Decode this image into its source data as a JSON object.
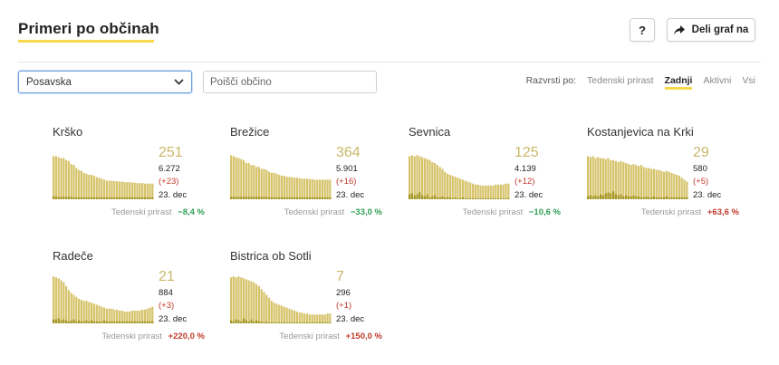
{
  "header": {
    "title": "Primeri po občinah",
    "help_label": "?",
    "share_label": "Deli graf na",
    "share_icon": "share-arrow-icon"
  },
  "filters": {
    "region_value": "Posavska",
    "search_placeholder": "Poišči občino"
  },
  "sort": {
    "label": "Razvrsti po:",
    "options": [
      "Tedenski prirast",
      "Zadnji",
      "Aktivni",
      "Vsi"
    ],
    "active": "Zadnji"
  },
  "colors": {
    "bar": "#d6c36a",
    "bar_dark": "#a39520",
    "accent_yellow": "#f6d84a",
    "negative_growth": "#2e9e55",
    "positive_growth": "#c0392b"
  },
  "cards": [
    {
      "name": "Krško",
      "active": "251",
      "total": "6.272",
      "delta": "(+23)",
      "date": "23. dec",
      "growth_label": "Tedenski prirast",
      "growth": "−8,4 %",
      "growth_dir": "neg",
      "bars": [
        88,
        88,
        86,
        84,
        84,
        80,
        78,
        72,
        70,
        64,
        60,
        58,
        54,
        52,
        50,
        50,
        48,
        45,
        44,
        42,
        40,
        38,
        38,
        38,
        37,
        37,
        36,
        36,
        35,
        35,
        35,
        34,
        34,
        33,
        33,
        33,
        32,
        32,
        32,
        32
      ],
      "dark": [
        6,
        6,
        5,
        5,
        5,
        5,
        5,
        5,
        4,
        4,
        4,
        4,
        4,
        4,
        4,
        4,
        4,
        4,
        4,
        4,
        4,
        4,
        4,
        4,
        4,
        4,
        4,
        4,
        4,
        4,
        4,
        4,
        4,
        4,
        4,
        4,
        4,
        4,
        4,
        4
      ]
    },
    {
      "name": "Brežice",
      "active": "364",
      "total": "5.901",
      "delta": "(+16)",
      "date": "23. dec",
      "growth_label": "Tedenski prirast",
      "growth": "−33,0 %",
      "growth_dir": "neg",
      "bars": [
        90,
        88,
        86,
        84,
        82,
        80,
        74,
        74,
        70,
        70,
        66,
        66,
        62,
        62,
        60,
        56,
        54,
        54,
        52,
        50,
        48,
        48,
        46,
        46,
        45,
        44,
        44,
        43,
        42,
        42,
        42,
        41,
        41,
        40,
        40,
        40,
        40,
        40,
        40,
        40
      ],
      "dark": [
        5,
        5,
        5,
        5,
        5,
        5,
        5,
        5,
        5,
        5,
        5,
        5,
        5,
        5,
        5,
        4,
        4,
        4,
        4,
        4,
        4,
        4,
        4,
        4,
        4,
        4,
        4,
        4,
        4,
        4,
        4,
        4,
        4,
        4,
        4,
        4,
        4,
        4,
        4,
        4
      ]
    },
    {
      "name": "Sevnica",
      "active": "125",
      "total": "4.139",
      "delta": "(+12)",
      "date": "23. dec",
      "growth_label": "Tedenski prirast",
      "growth": "−10,6 %",
      "growth_dir": "neg",
      "bars": [
        88,
        90,
        88,
        90,
        88,
        86,
        84,
        82,
        80,
        76,
        74,
        70,
        66,
        62,
        56,
        52,
        50,
        48,
        46,
        44,
        42,
        40,
        38,
        36,
        34,
        32,
        30,
        30,
        28,
        28,
        28,
        28,
        28,
        28,
        30,
        30,
        30,
        30,
        32,
        32
      ],
      "dark": [
        10,
        12,
        8,
        10,
        14,
        8,
        6,
        10,
        4,
        6,
        8,
        4,
        4,
        6,
        4,
        4,
        4,
        2,
        4,
        2,
        2,
        4,
        2,
        2,
        2,
        2,
        2,
        2,
        2,
        2,
        2,
        2,
        2,
        2,
        2,
        2,
        2,
        2,
        2,
        2
      ]
    },
    {
      "name": "Kostanjevica na Krki",
      "active": "29",
      "total": "580",
      "delta": "(+5)",
      "date": "23. dec",
      "growth_label": "Tedenski prirast",
      "growth": "+63,6 %",
      "growth_dir": "pos",
      "bars": [
        88,
        86,
        88,
        84,
        86,
        84,
        84,
        82,
        84,
        80,
        80,
        78,
        76,
        78,
        76,
        74,
        72,
        70,
        72,
        70,
        68,
        70,
        66,
        64,
        64,
        62,
        62,
        60,
        60,
        58,
        56,
        58,
        56,
        54,
        52,
        50,
        48,
        44,
        40,
        36
      ],
      "dark": [
        6,
        8,
        6,
        8,
        6,
        10,
        8,
        12,
        14,
        12,
        16,
        10,
        8,
        10,
        6,
        8,
        6,
        6,
        8,
        6,
        6,
        4,
        4,
        6,
        4,
        4,
        6,
        4,
        4,
        4,
        4,
        6,
        4,
        4,
        4,
        4,
        4,
        4,
        4,
        4
      ]
    },
    {
      "name": "Radeče",
      "active": "21",
      "total": "884",
      "delta": "(+3)",
      "date": "23. dec",
      "growth_label": "Tedenski prirast",
      "growth": "+220,0 %",
      "growth_dir": "pos",
      "bars": [
        96,
        94,
        92,
        88,
        84,
        76,
        68,
        62,
        58,
        54,
        50,
        48,
        46,
        46,
        44,
        42,
        40,
        38,
        36,
        34,
        32,
        30,
        30,
        30,
        28,
        28,
        26,
        26,
        24,
        24,
        24,
        26,
        26,
        26,
        26,
        28,
        28,
        30,
        32,
        34
      ],
      "dark": [
        8,
        8,
        10,
        6,
        8,
        6,
        4,
        6,
        8,
        4,
        6,
        4,
        4,
        6,
        4,
        6,
        4,
        4,
        4,
        4,
        6,
        4,
        4,
        4,
        4,
        4,
        4,
        4,
        4,
        4,
        4,
        4,
        4,
        4,
        4,
        4,
        4,
        4,
        4,
        4
      ]
    },
    {
      "name": "Bistrica ob Sotli",
      "active": "7",
      "total": "296",
      "delta": "(+1)",
      "date": "23. dec",
      "growth_label": "Tedenski prirast",
      "growth": "+150,0 %",
      "growth_dir": "pos",
      "bars": [
        94,
        96,
        94,
        96,
        94,
        92,
        90,
        88,
        86,
        84,
        80,
        76,
        70,
        64,
        58,
        52,
        46,
        42,
        40,
        38,
        36,
        34,
        32,
        30,
        28,
        26,
        24,
        22,
        22,
        20,
        20,
        18,
        18,
        18,
        18,
        18,
        18,
        18,
        20,
        20
      ],
      "dark": [
        6,
        4,
        8,
        6,
        4,
        10,
        6,
        4,
        8,
        4,
        6,
        4,
        4,
        2,
        4,
        2,
        2,
        2,
        2,
        2,
        2,
        2,
        2,
        2,
        2,
        2,
        2,
        2,
        2,
        2,
        2,
        2,
        2,
        2,
        2,
        2,
        2,
        2,
        2,
        2
      ]
    }
  ]
}
